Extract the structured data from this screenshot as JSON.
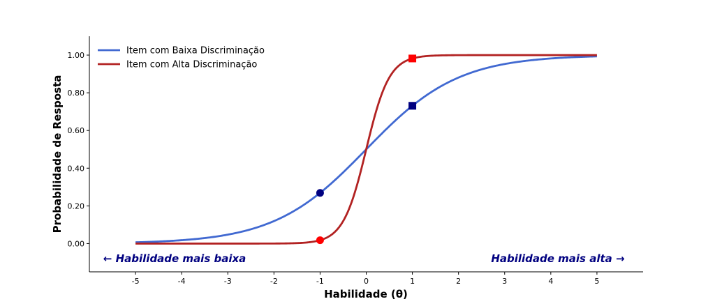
{
  "chart_data": {
    "type": "line",
    "title": "",
    "xlabel": "Habilidade (θ)",
    "ylabel": "Probabilidade de Resposta",
    "xlim": [
      -6.0,
      6.0
    ],
    "ylim": [
      -0.15,
      1.1
    ],
    "x_ticks": [
      -5,
      -4,
      -3,
      -2,
      -1,
      0,
      1,
      2,
      3,
      4,
      5
    ],
    "x_tick_labels": [
      "-5",
      "-4",
      "-3",
      "-2",
      "-1",
      "0",
      "1",
      "2",
      "3",
      "4",
      "5"
    ],
    "y_ticks": [
      0.0,
      0.2,
      0.4,
      0.6,
      0.8,
      1.0
    ],
    "y_tick_labels": [
      "0.00",
      "0.20",
      "0.40",
      "0.60",
      "0.80",
      "1.00"
    ],
    "grid": false,
    "legend_position": "top-left",
    "series": [
      {
        "name": "Item com Baixa Discriminação",
        "color": "#4169d1",
        "discrimination": 1.0,
        "difficulty": 0.0,
        "x": [
          -5,
          -4,
          -3,
          -2,
          -1,
          0,
          1,
          2,
          3,
          4,
          5
        ],
        "values": [
          0.007,
          0.018,
          0.047,
          0.119,
          0.269,
          0.5,
          0.731,
          0.881,
          0.953,
          0.982,
          0.993
        ],
        "markers": [
          {
            "x": -1,
            "y": 0.269,
            "shape": "circle",
            "color": "#000080"
          },
          {
            "x": 1,
            "y": 0.731,
            "shape": "square",
            "color": "#000080"
          }
        ]
      },
      {
        "name": "Item com Alta Discriminação",
        "color": "#b22222",
        "discrimination": 4.0,
        "difficulty": 0.0,
        "x": [
          -5,
          -4,
          -3,
          -2,
          -1,
          0,
          1,
          2,
          3,
          4,
          5
        ],
        "values": [
          0.0,
          0.0,
          0.0,
          0.0,
          0.018,
          0.5,
          0.982,
          1.0,
          1.0,
          1.0,
          1.0
        ],
        "markers": [
          {
            "x": -1,
            "y": 0.018,
            "shape": "circle",
            "color": "#ff0000"
          },
          {
            "x": 1,
            "y": 0.982,
            "shape": "square",
            "color": "#ff0000"
          }
        ]
      }
    ],
    "annotations": [
      {
        "text": "← Habilidade mais baixa",
        "x": -5.7,
        "y": -0.08,
        "anchor": "start",
        "color": "#000080"
      },
      {
        "text": "Habilidade mais alta →",
        "x": 5.6,
        "y": -0.08,
        "anchor": "end",
        "color": "#000080"
      }
    ]
  }
}
